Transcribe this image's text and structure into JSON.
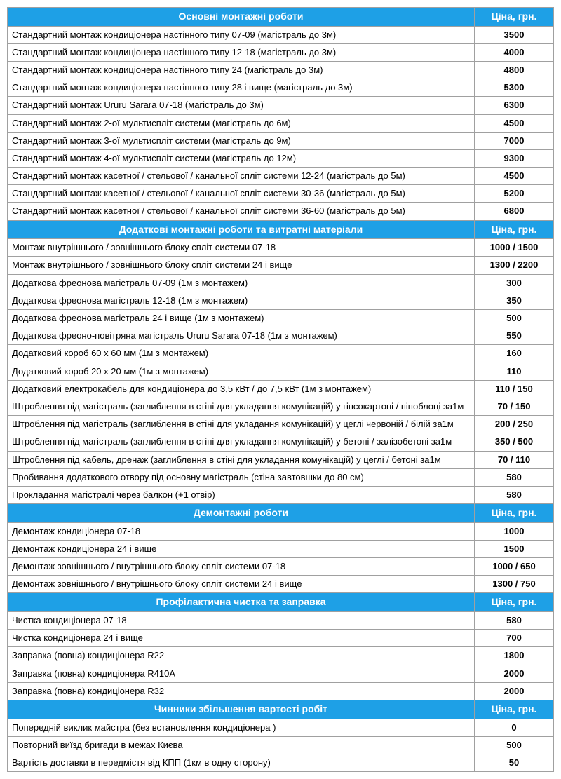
{
  "priceHeaderLabel": "Ціна, грн.",
  "headerBg": "#1ea0e6",
  "headerColor": "#ffffff",
  "borderColor": "#a0a0a0",
  "fontSize": 13,
  "sections": [
    {
      "title": "Основні монтажні роботи",
      "rows": [
        {
          "desc": "Стандартний монтаж кондиціонера настінного типу 07-09 (магістраль до 3м)",
          "price": "3500"
        },
        {
          "desc": "Стандартний монтаж кондиціонера настінного типу 12-18 (магістраль до 3м)",
          "price": "4000"
        },
        {
          "desc": "Стандартний монтаж кондиціонера настінного типу 24 (магістраль до 3м)",
          "price": "4800"
        },
        {
          "desc": "Стандартний монтаж кондиціонера настінного типу 28 і вище (магістраль до 3м)",
          "price": "5300"
        },
        {
          "desc": "Стандартний монтаж Ururu Sarara 07-18 (магістраль до 3м)",
          "price": "6300"
        },
        {
          "desc": "Стандартний монтаж 2-ої мультиспліт системи (магістраль до 6м)",
          "price": "4500"
        },
        {
          "desc": "Стандартний монтаж 3-ої мультиспліт системи (магістраль до 9м)",
          "price": "7000"
        },
        {
          "desc": "Стандартний монтаж 4-ої мультиспліт системи (магістраль до 12м)",
          "price": "9300"
        },
        {
          "desc": "Стандартний монтаж касетної / стельової / канальної спліт системи 12-24 (магістраль до 5м)",
          "price": "4500"
        },
        {
          "desc": "Стандартний монтаж касетної / стельової / канальної спліт системи 30-36 (магістраль до 5м)",
          "price": "5200"
        },
        {
          "desc": "Стандартний монтаж касетної / стельової / канальної спліт системи 36-60 (магістраль до 5м)",
          "price": "6800"
        }
      ]
    },
    {
      "title": "Додаткові монтажні роботи та витратні матеріали",
      "rows": [
        {
          "desc": "Монтаж внутрішнього / зовнішнього блоку спліт системи 07-18",
          "price": "1000 / 1500"
        },
        {
          "desc": "Монтаж внутрішнього / зовнішнього блоку спліт системи 24 і вище",
          "price": "1300 / 2200"
        },
        {
          "desc": "Додаткова фреонова магістраль 07-09 (1м з монтажем)",
          "price": "300"
        },
        {
          "desc": "Додаткова фреонова магістраль 12-18 (1м з монтажем)",
          "price": "350"
        },
        {
          "desc": "Додаткова фреонова магістраль 24 і вище (1м з монтажем)",
          "price": "500"
        },
        {
          "desc": "Додаткова фреоно-повітряна магістраль Ururu Sarara 07-18 (1м з монтажем)",
          "price": "550"
        },
        {
          "desc": "Додатковий короб 60 х 60 мм (1м з монтажем)",
          "price": "160"
        },
        {
          "desc": "Додатковий короб 20 х 20 мм (1м з монтажем)",
          "price": "110"
        },
        {
          "desc": "Додатковий електрокабель для кондиціонера до 3,5 кВт / до 7,5 кВт (1м з монтажем)",
          "price": "110 / 150"
        },
        {
          "desc": "Штроблення під магістраль (заглиблення в стіні для укладання комунікацій) у гіпсокартоні / піноблоці за1м",
          "price": "70 / 150"
        },
        {
          "desc": "Штроблення під магістраль (заглиблення в стіні для укладання комунікацій) у цеглі червоній / білій за1м",
          "price": "200 / 250"
        },
        {
          "desc": "Штроблення під магістраль (заглиблення в стіні для укладання комунікацій) у бетоні / залізобетоні за1м",
          "price": "350 / 500"
        },
        {
          "desc": "Штроблення під кабель, дренаж (заглиблення в стіні для укладання комунікацій) у цеглі / бетоні за1м",
          "price": "70 / 110"
        },
        {
          "desc": "Пробивання додаткового отвору під основну магістраль (стіна завтовшки до 80 см)",
          "price": "580"
        },
        {
          "desc": "Прокладання магістралі через балкон (+1 отвір)",
          "price": "580"
        }
      ]
    },
    {
      "title": "Демонтажні роботи",
      "rows": [
        {
          "desc": "Демонтаж кондиціонера 07-18",
          "price": "1000"
        },
        {
          "desc": "Демонтаж кондиціонера 24 і вище",
          "price": "1500"
        },
        {
          "desc": "Демонтаж зовнішнього / внутрішнього блоку спліт системи 07-18",
          "price": "1000 / 650"
        },
        {
          "desc": "Демонтаж зовнішнього / внутрішнього блоку спліт системи 24 і вище",
          "price": "1300 / 750"
        }
      ]
    },
    {
      "title": "Профілактична чистка та заправка",
      "rows": [
        {
          "desc": "Чистка кондиціонера 07-18",
          "price": "580"
        },
        {
          "desc": "Чистка кондиціонера 24 і вище",
          "price": "700"
        },
        {
          "desc": "Заправка (повна) кондиціонера R22",
          "price": "1800"
        },
        {
          "desc": "Заправка (повна) кондиціонера R410A",
          "price": "2000"
        },
        {
          "desc": "Заправка (повна) кондиціонера R32",
          "price": "2000"
        }
      ]
    },
    {
      "title": "Чинники збільшення вартості робіт",
      "rows": [
        {
          "desc": "Попередній виклик майстра (без встановлення кондиціонера )",
          "price": "0"
        },
        {
          "desc": "Повторний виїзд бригади в межах Києва",
          "price": "500"
        },
        {
          "desc": "Вартість доставки в передмістя від КПП (1км в одну сторону)",
          "price": "50"
        }
      ]
    }
  ]
}
